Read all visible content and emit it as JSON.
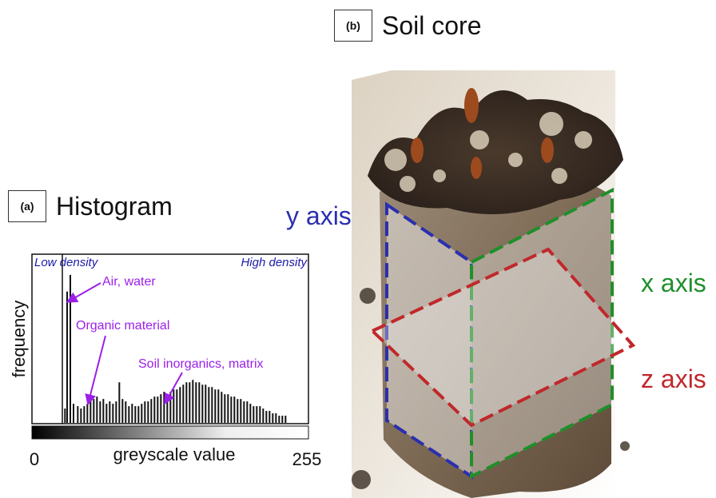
{
  "panel_a": {
    "badge": "(a)",
    "title": "Histogram"
  },
  "panel_b": {
    "badge": "(b)",
    "title": "Soil core"
  },
  "histogram": {
    "ylabel": "frequency",
    "xlabel": "greyscale value",
    "x_min_label": "0",
    "x_max_label": "255",
    "low_label": "Low density",
    "high_label": "High density",
    "annotations": {
      "air_water": "Air, water",
      "organic": "Organic material",
      "inorganic": "Soil inorganics, matrix"
    },
    "colors": {
      "annotation": "#9b1fe8",
      "density_text": "#1a1aa8"
    }
  },
  "axes_labels": {
    "y": "y axis",
    "x": "x axis",
    "z": "z axis"
  },
  "axis_colors": {
    "y": "#2a2fae",
    "x": "#1f8f2a",
    "z": "#c0282b"
  },
  "chart_data": {
    "type": "bar",
    "xlabel": "greyscale value",
    "ylabel": "frequency",
    "x": [
      28,
      30,
      33,
      36,
      40,
      43,
      46,
      49,
      52,
      55,
      58,
      61,
      64,
      67,
      70,
      73,
      76,
      79,
      82,
      85,
      88,
      91,
      94,
      97,
      100,
      103,
      106,
      109,
      112,
      115,
      118,
      121,
      124,
      127,
      130,
      133,
      136,
      139,
      142,
      145,
      148,
      151,
      154,
      157,
      160,
      163,
      166,
      169,
      172,
      175,
      178,
      181,
      184,
      187,
      190,
      193,
      196,
      199,
      202,
      205,
      208,
      211,
      214,
      217,
      220,
      223,
      226,
      229,
      232,
      235
    ],
    "values": [
      6,
      55,
      62,
      8,
      7,
      6,
      7,
      8,
      9,
      10,
      11,
      9,
      10,
      8,
      9,
      8,
      9,
      17,
      10,
      9,
      7,
      8,
      7,
      7,
      8,
      9,
      9,
      10,
      11,
      11,
      12,
      13,
      12,
      13,
      14,
      14,
      15,
      16,
      17,
      17,
      18,
      17,
      17,
      16,
      16,
      15,
      15,
      14,
      14,
      13,
      12,
      12,
      11,
      11,
      10,
      10,
      9,
      9,
      8,
      7,
      7,
      7,
      6,
      5,
      5,
      4,
      4,
      3,
      3,
      3
    ],
    "xlim": [
      0,
      255
    ],
    "ylim": [
      0,
      70
    ]
  }
}
